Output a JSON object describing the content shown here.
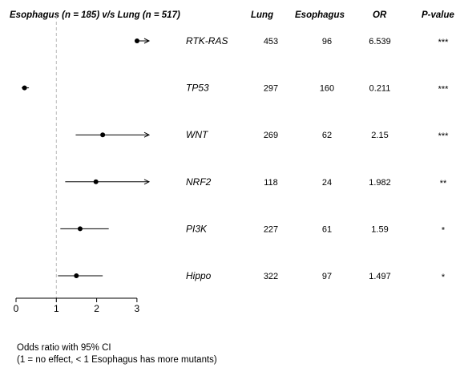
{
  "header": {
    "title": "Esophagus (n = 185) v/s Lung (n = 517)",
    "col_lung": "Lung",
    "col_esophagus": "Esophagus",
    "col_or": "OR",
    "col_p": "P-value"
  },
  "chart_data": {
    "type": "forest",
    "title": "Esophagus (n = 185) v/s Lung (n = 517)",
    "xlabel": "Odds ratio with 95% CI",
    "x_ticks": [
      "0",
      "1",
      "2",
      "3"
    ],
    "xlim": [
      0,
      3.3
    ],
    "reference_line": 1,
    "rows": [
      {
        "gene": "RTK-RAS",
        "lung": "453",
        "esophagus": "96",
        "or": "6.539",
        "p": "***",
        "or_val": 6.539,
        "ci_low": 2.95,
        "ci_high": 3.3,
        "arrow_right": true
      },
      {
        "gene": "TP53",
        "lung": "297",
        "esophagus": "160",
        "or": "0.211",
        "p": "***",
        "or_val": 0.211,
        "ci_low": 0.14,
        "ci_high": 0.32,
        "arrow_right": false
      },
      {
        "gene": "WNT",
        "lung": "269",
        "esophagus": "62",
        "or": "2.15",
        "p": "***",
        "or_val": 2.15,
        "ci_low": 1.48,
        "ci_high": 3.3,
        "arrow_right": true
      },
      {
        "gene": "NRF2",
        "lung": "118",
        "esophagus": "24",
        "or": "1.982",
        "p": "**",
        "or_val": 1.982,
        "ci_low": 1.22,
        "ci_high": 3.3,
        "arrow_right": true
      },
      {
        "gene": "PI3K",
        "lung": "227",
        "esophagus": "61",
        "or": "1.59",
        "p": "*",
        "or_val": 1.59,
        "ci_low": 1.1,
        "ci_high": 2.3,
        "arrow_right": false
      },
      {
        "gene": "Hippo",
        "lung": "322",
        "esophagus": "97",
        "or": "1.497",
        "p": "*",
        "or_val": 1.497,
        "ci_low": 1.04,
        "ci_high": 2.15,
        "arrow_right": false
      }
    ]
  },
  "footnote": {
    "line1": "Odds ratio with 95% CI",
    "line2": "(1 = no effect, < 1 Esophagus has more mutants)"
  }
}
